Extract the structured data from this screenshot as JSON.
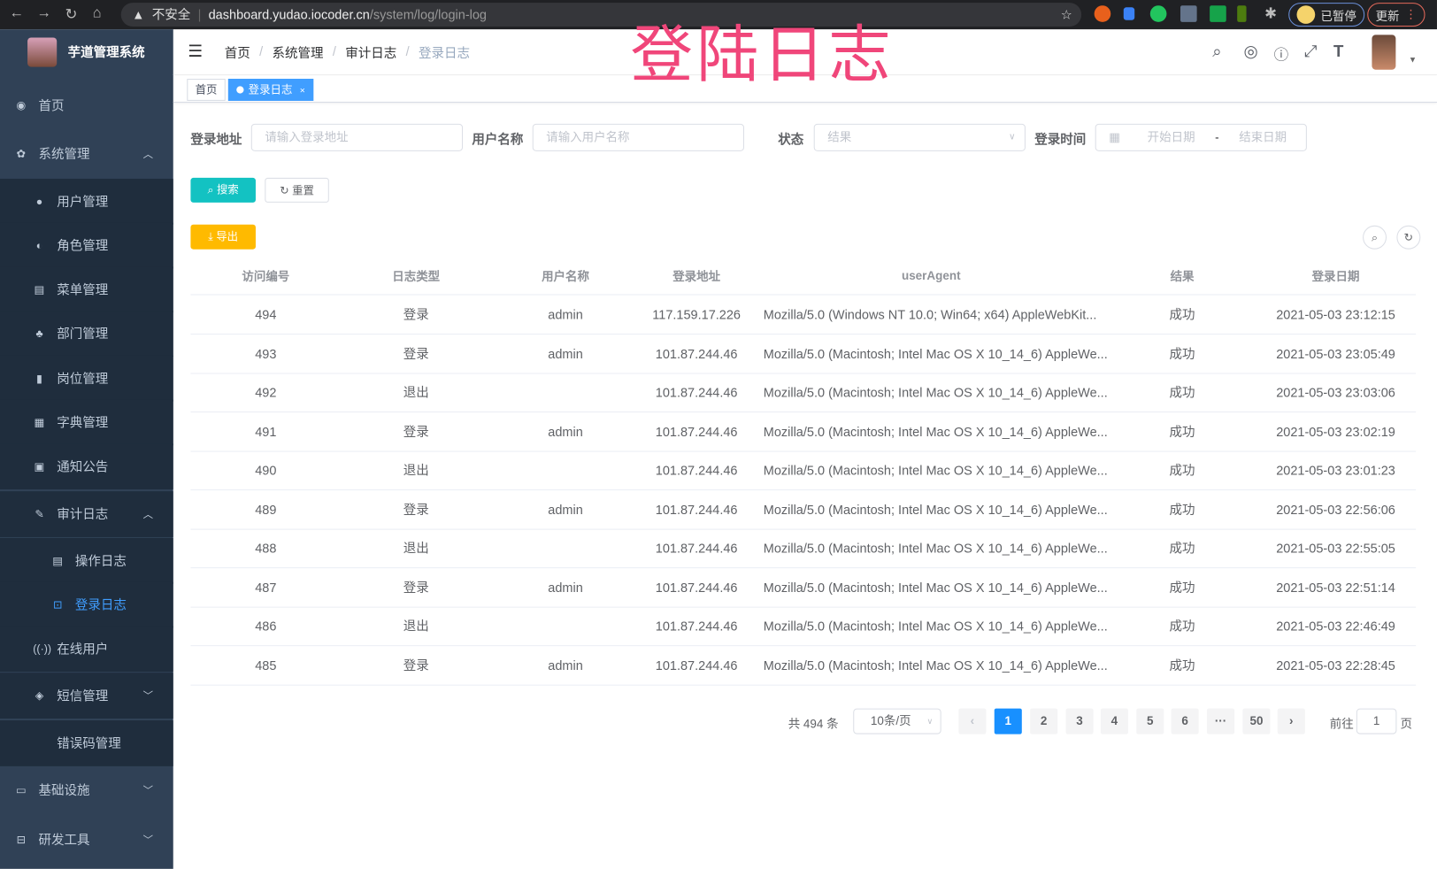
{
  "browser": {
    "insecure": "不安全",
    "host": "dashboard.yudao.iocoder.cn",
    "path": "/system/log/login-log",
    "paused": "已暂停",
    "update": "更新"
  },
  "overlay_title": "登陆日志",
  "sidebar": {
    "title": "芋道管理系统",
    "items": [
      {
        "label": "首页",
        "icon": "dashboard-icon",
        "level": 0
      },
      {
        "label": "系统管理",
        "icon": "gear-icon",
        "level": 0,
        "chev": "up"
      },
      {
        "label": "用户管理",
        "icon": "user-icon",
        "level": 1
      },
      {
        "label": "角色管理",
        "icon": "peoples-icon",
        "level": 1
      },
      {
        "label": "菜单管理",
        "icon": "tree-table-icon",
        "level": 1
      },
      {
        "label": "部门管理",
        "icon": "tree-icon",
        "level": 1
      },
      {
        "label": "岗位管理",
        "icon": "post-icon",
        "level": 1
      },
      {
        "label": "字典管理",
        "icon": "dict-icon",
        "level": 1
      },
      {
        "label": "通知公告",
        "icon": "message-icon",
        "level": 1
      },
      {
        "label": "审计日志",
        "icon": "log-icon",
        "level": 1,
        "chev": "up"
      },
      {
        "label": "操作日志",
        "icon": "form-icon",
        "level": 2
      },
      {
        "label": "登录日志",
        "icon": "logininfor-icon",
        "level": 2,
        "active": true
      },
      {
        "label": "在线用户",
        "icon": "online-icon",
        "level": 1
      },
      {
        "label": "短信管理",
        "icon": "validcode-icon",
        "level": 1,
        "chev": "down"
      },
      {
        "label": "错误码管理",
        "icon": "code-icon",
        "level": 1
      },
      {
        "label": "基础设施",
        "icon": "monitor-icon",
        "level": 0,
        "chev": "down"
      },
      {
        "label": "研发工具",
        "icon": "tool-icon",
        "level": 0,
        "chev": "down"
      }
    ]
  },
  "breadcrumb": [
    "首页",
    "系统管理",
    "审计日志",
    "登录日志"
  ],
  "tags": [
    {
      "label": "首页"
    },
    {
      "label": "登录日志",
      "active": true
    }
  ],
  "filters": {
    "ip_label": "登录地址",
    "ip_placeholder": "请输入登录地址",
    "user_label": "用户名称",
    "user_placeholder": "请输入用户名称",
    "status_label": "状态",
    "status_placeholder": "结果",
    "time_label": "登录时间",
    "start_placeholder": "开始日期",
    "range_sep": "-",
    "end_placeholder": "结束日期"
  },
  "buttons": {
    "search": "搜索",
    "reset": "重置",
    "export": "导出"
  },
  "table": {
    "columns": [
      "访问编号",
      "日志类型",
      "用户名称",
      "登录地址",
      "userAgent",
      "结果",
      "登录日期"
    ],
    "rows": [
      [
        "494",
        "登录",
        "admin",
        "117.159.17.226",
        "Mozilla/5.0 (Windows NT 10.0; Win64; x64) AppleWebKit...",
        "成功",
        "2021-05-03 23:12:15"
      ],
      [
        "493",
        "登录",
        "admin",
        "101.87.244.46",
        "Mozilla/5.0 (Macintosh; Intel Mac OS X 10_14_6) AppleWe...",
        "成功",
        "2021-05-03 23:05:49"
      ],
      [
        "492",
        "退出",
        "",
        "101.87.244.46",
        "Mozilla/5.0 (Macintosh; Intel Mac OS X 10_14_6) AppleWe...",
        "成功",
        "2021-05-03 23:03:06"
      ],
      [
        "491",
        "登录",
        "admin",
        "101.87.244.46",
        "Mozilla/5.0 (Macintosh; Intel Mac OS X 10_14_6) AppleWe...",
        "成功",
        "2021-05-03 23:02:19"
      ],
      [
        "490",
        "退出",
        "",
        "101.87.244.46",
        "Mozilla/5.0 (Macintosh; Intel Mac OS X 10_14_6) AppleWe...",
        "成功",
        "2021-05-03 23:01:23"
      ],
      [
        "489",
        "登录",
        "admin",
        "101.87.244.46",
        "Mozilla/5.0 (Macintosh; Intel Mac OS X 10_14_6) AppleWe...",
        "成功",
        "2021-05-03 22:56:06"
      ],
      [
        "488",
        "退出",
        "",
        "101.87.244.46",
        "Mozilla/5.0 (Macintosh; Intel Mac OS X 10_14_6) AppleWe...",
        "成功",
        "2021-05-03 22:55:05"
      ],
      [
        "487",
        "登录",
        "admin",
        "101.87.244.46",
        "Mozilla/5.0 (Macintosh; Intel Mac OS X 10_14_6) AppleWe...",
        "成功",
        "2021-05-03 22:51:14"
      ],
      [
        "486",
        "退出",
        "",
        "101.87.244.46",
        "Mozilla/5.0 (Macintosh; Intel Mac OS X 10_14_6) AppleWe...",
        "成功",
        "2021-05-03 22:46:49"
      ],
      [
        "485",
        "登录",
        "admin",
        "101.87.244.46",
        "Mozilla/5.0 (Macintosh; Intel Mac OS X 10_14_6) AppleWe...",
        "成功",
        "2021-05-03 22:28:45"
      ]
    ]
  },
  "pagination": {
    "total": "共 494 条",
    "page_size": "10条/页",
    "pages": [
      "1",
      "2",
      "3",
      "4",
      "5",
      "6",
      "···",
      "50"
    ],
    "current": "1",
    "goto_label": "前往",
    "goto_value": "1",
    "goto_suffix": "页"
  },
  "colors": {
    "sidebar": "#304156",
    "submenu": "#1f2d3d",
    "primary": "#1890ff",
    "search": "#13c2c2",
    "export": "#ffba00",
    "overlay": "#f0467a"
  }
}
